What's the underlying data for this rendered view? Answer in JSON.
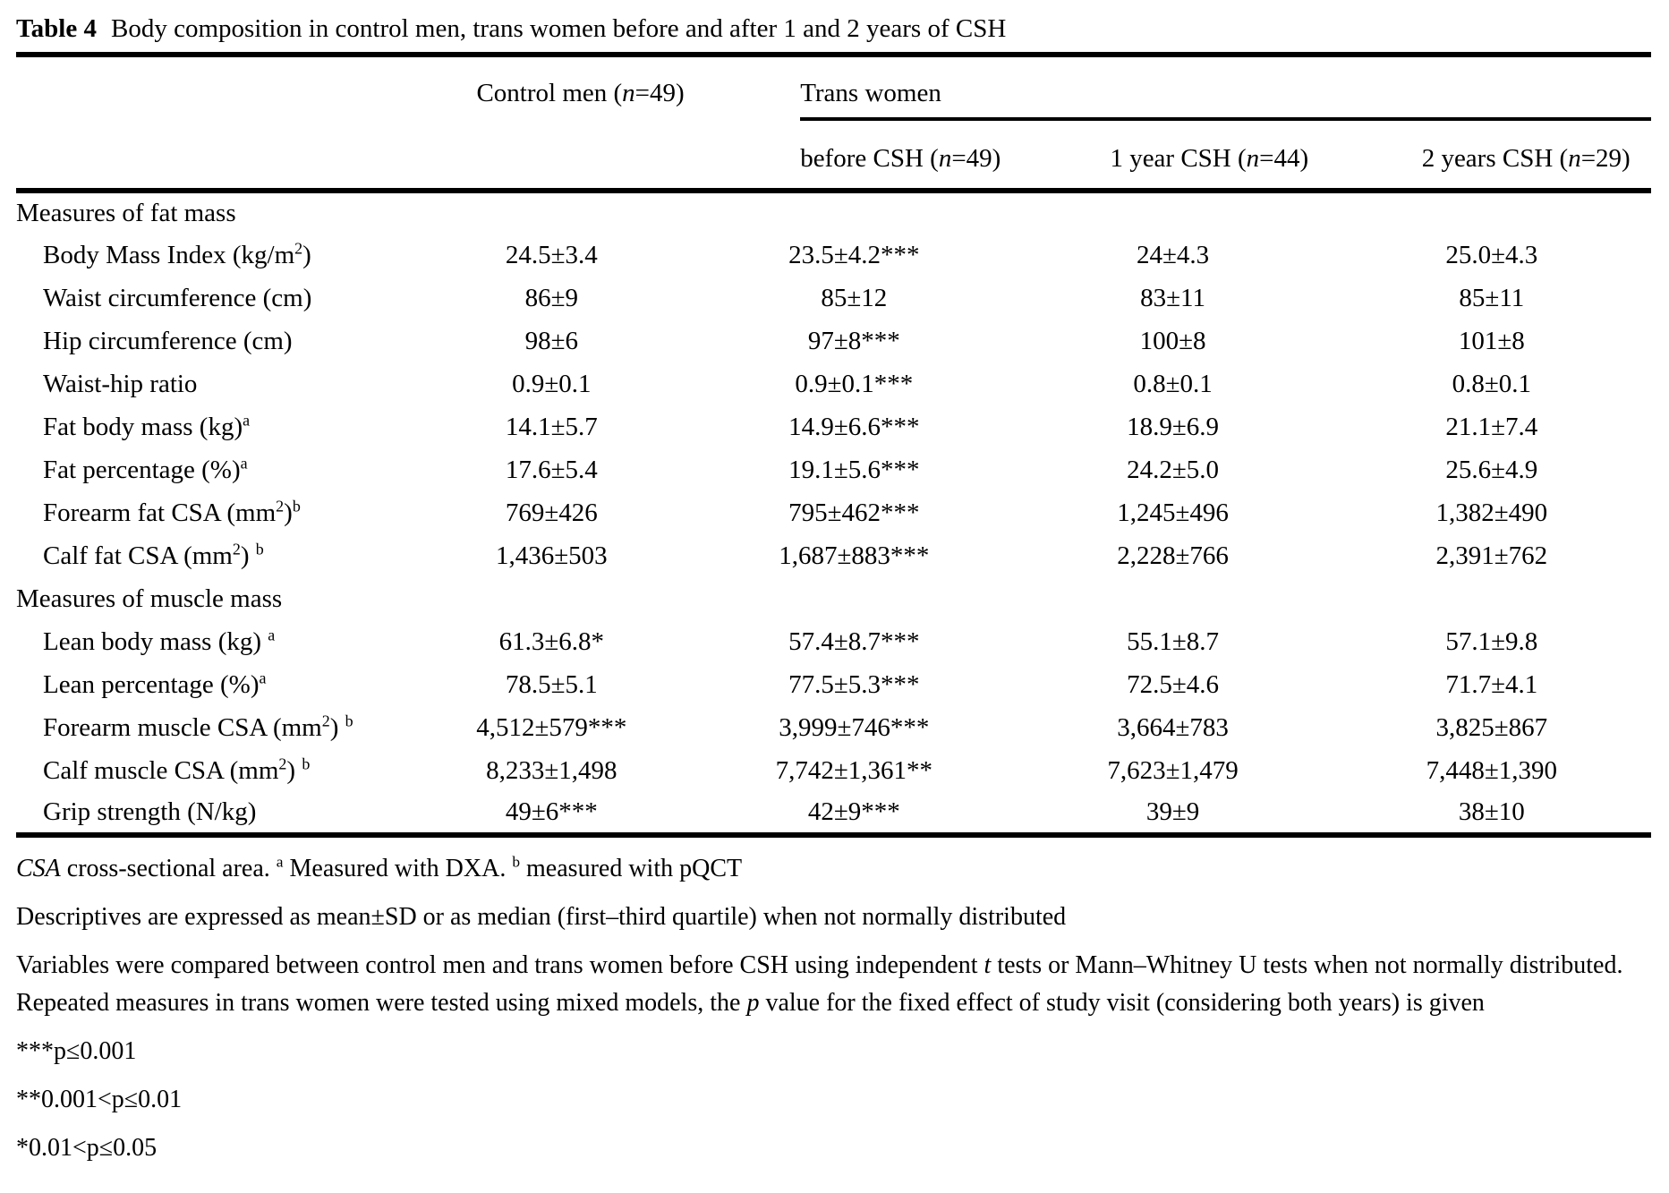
{
  "title": {
    "label": "Table 4",
    "text": "Body composition in control men, trans women before and after 1 and 2 years of CSH"
  },
  "colors": {
    "text": "#000000",
    "background": "#ffffff",
    "rule": "#000000"
  },
  "table": {
    "col_headers": {
      "control_men": {
        "pre": "Control men (",
        "n": "n",
        "post": "=49)"
      },
      "trans_women": "Trans women",
      "before_csh": {
        "pre": "before CSH (",
        "n": "n",
        "post": "=49)"
      },
      "year1_csh": {
        "pre": "1 year CSH (",
        "n": "n",
        "post": "=44)"
      },
      "year2_csh": {
        "pre": "2 years CSH (",
        "n": "n",
        "post": "=29)"
      }
    },
    "rows": [
      {
        "type": "section",
        "label": [
          {
            "t": "Measures of fat mass"
          }
        ]
      },
      {
        "type": "data",
        "label": [
          {
            "t": "Body Mass Index (kg/m"
          },
          {
            "t": "2",
            "s": "sup"
          },
          {
            "t": ")"
          }
        ],
        "values": [
          "24.5±3.4",
          "23.5±4.2***",
          "24±4.3",
          "25.0±4.3"
        ]
      },
      {
        "type": "data",
        "label": [
          {
            "t": "Waist circumference (cm)"
          }
        ],
        "values": [
          "86±9",
          "85±12",
          "83±11",
          "85±11"
        ]
      },
      {
        "type": "data",
        "label": [
          {
            "t": "Hip circumference (cm)"
          }
        ],
        "values": [
          "98±6",
          "97±8***",
          "100±8",
          "101±8"
        ]
      },
      {
        "type": "data",
        "label": [
          {
            "t": "Waist-hip ratio"
          }
        ],
        "values": [
          "0.9±0.1",
          "0.9±0.1***",
          "0.8±0.1",
          "0.8±0.1"
        ]
      },
      {
        "type": "data",
        "label": [
          {
            "t": "Fat body mass (kg)"
          },
          {
            "t": "a",
            "s": "sup"
          }
        ],
        "values": [
          "14.1±5.7",
          "14.9±6.6***",
          "18.9±6.9",
          "21.1±7.4"
        ]
      },
      {
        "type": "data",
        "label": [
          {
            "t": "Fat percentage (%)"
          },
          {
            "t": "a",
            "s": "sup"
          }
        ],
        "values": [
          "17.6±5.4",
          "19.1±5.6***",
          "24.2±5.0",
          "25.6±4.9"
        ]
      },
      {
        "type": "data",
        "label": [
          {
            "t": "Forearm fat CSA (mm"
          },
          {
            "t": "2",
            "s": "sup"
          },
          {
            "t": ")"
          },
          {
            "t": "b",
            "s": "sup"
          }
        ],
        "values": [
          "769±426",
          "795±462***",
          "1,245±496",
          "1,382±490"
        ]
      },
      {
        "type": "data",
        "label": [
          {
            "t": "Calf fat CSA (mm"
          },
          {
            "t": "2",
            "s": "sup"
          },
          {
            "t": ") "
          },
          {
            "t": "b",
            "s": "sup"
          }
        ],
        "values": [
          "1,436±503",
          "1,687±883***",
          "2,228±766",
          "2,391±762"
        ]
      },
      {
        "type": "section",
        "label": [
          {
            "t": "Measures of muscle mass"
          }
        ]
      },
      {
        "type": "data",
        "label": [
          {
            "t": "Lean body mass (kg) "
          },
          {
            "t": "a",
            "s": "sup"
          }
        ],
        "values": [
          "61.3±6.8*",
          "57.4±8.7***",
          "55.1±8.7",
          "57.1±9.8"
        ]
      },
      {
        "type": "data",
        "label": [
          {
            "t": "Lean percentage (%)"
          },
          {
            "t": "a",
            "s": "sup"
          }
        ],
        "values": [
          "78.5±5.1",
          "77.5±5.3***",
          "72.5±4.6",
          "71.7±4.1"
        ]
      },
      {
        "type": "data",
        "label": [
          {
            "t": "Forearm muscle CSA (mm"
          },
          {
            "t": "2",
            "s": "sup"
          },
          {
            "t": ") "
          },
          {
            "t": "b",
            "s": "sup"
          }
        ],
        "values": [
          "4,512±579***",
          "3,999±746***",
          "3,664±783",
          "3,825±867"
        ]
      },
      {
        "type": "data",
        "label": [
          {
            "t": "Calf muscle CSA (mm"
          },
          {
            "t": "2",
            "s": "sup"
          },
          {
            "t": ") "
          },
          {
            "t": "b",
            "s": "sup"
          }
        ],
        "values": [
          "8,233±1,498",
          "7,742±1,361**",
          "7,623±1,479",
          "7,448±1,390"
        ]
      },
      {
        "type": "data",
        "label": [
          {
            "t": "Grip strength (N/kg)"
          }
        ],
        "values": [
          "49±6***",
          "42±9***",
          "39±9",
          "38±10"
        ]
      }
    ]
  },
  "footnotes": [
    {
      "segments": [
        {
          "t": "CSA",
          "s": "i"
        },
        {
          "t": " cross-sectional area. "
        },
        {
          "t": "a",
          "s": "sup"
        },
        {
          "t": " Measured with DXA. "
        },
        {
          "t": "b",
          "s": "sup"
        },
        {
          "t": " measured with pQCT"
        }
      ]
    },
    {
      "segments": [
        {
          "t": "Descriptives are expressed as mean±SD or as median (first–third quartile) when not normally distributed"
        }
      ]
    },
    {
      "segments": [
        {
          "t": "Variables were compared between control men and trans women before CSH using independent "
        },
        {
          "t": "t",
          "s": "i"
        },
        {
          "t": " tests or Mann–Whitney U tests when not normally distributed. Repeated measures in trans women were tested using mixed models, the "
        },
        {
          "t": "p",
          "s": "i"
        },
        {
          "t": " value for the fixed effect of study visit (considering both years) is given"
        }
      ]
    },
    {
      "segments": [
        {
          "t": "***p≤0.001"
        }
      ]
    },
    {
      "segments": [
        {
          "t": "**0.001<p≤0.01"
        }
      ]
    },
    {
      "segments": [
        {
          "t": "*0.01<p≤0.05"
        }
      ]
    }
  ]
}
